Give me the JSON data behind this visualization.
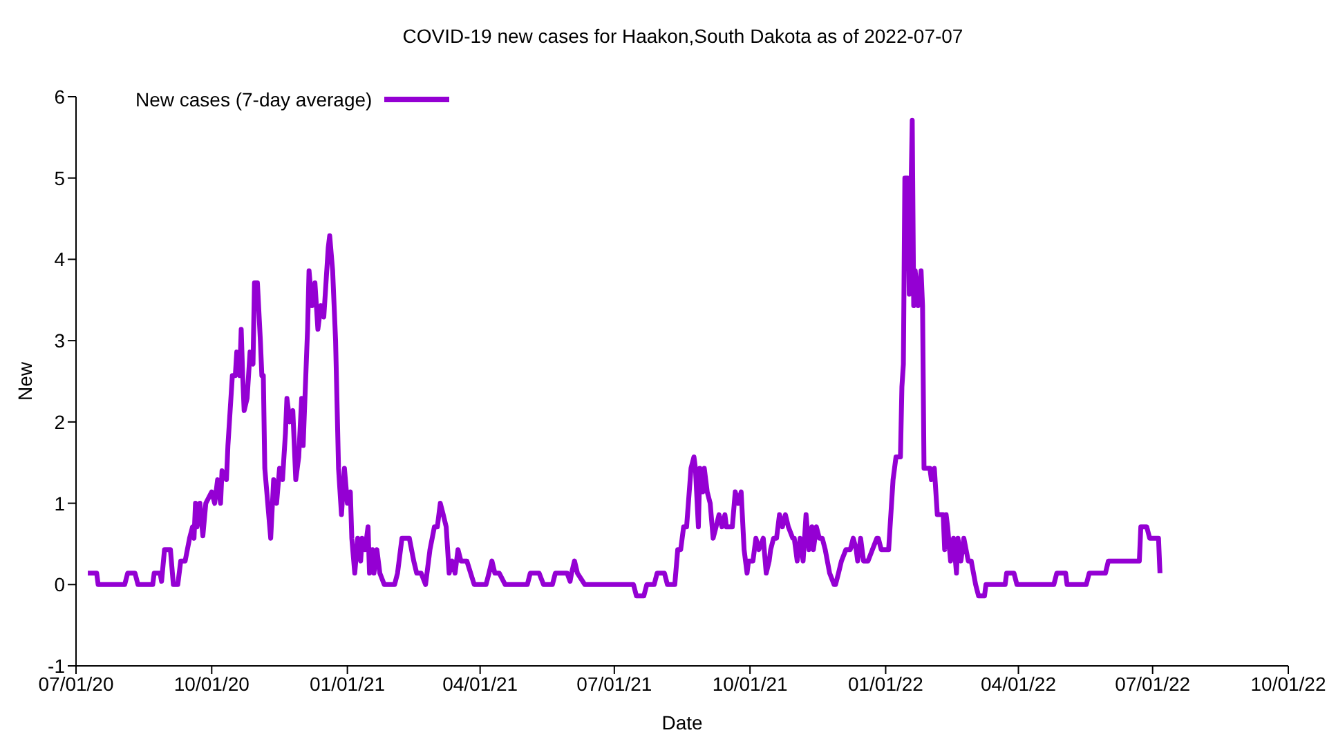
{
  "chart_data": {
    "type": "line",
    "title": "COVID-19 new cases for Haakon,South Dakota as of 2022-07-07",
    "xlabel": "Date",
    "ylabel": "New",
    "x": [
      "2020-07-09",
      "2020-07-15",
      "2020-07-16",
      "2020-08-03",
      "2020-08-05",
      "2020-08-10",
      "2020-08-12",
      "2020-08-22",
      "2020-08-23",
      "2020-08-27",
      "2020-08-28",
      "2020-08-30",
      "2020-09-03",
      "2020-09-05",
      "2020-09-08",
      "2020-09-10",
      "2020-09-13",
      "2020-09-16",
      "2020-09-18",
      "2020-09-19",
      "2020-09-20",
      "2020-09-21",
      "2020-09-23",
      "2020-09-25",
      "2020-09-27",
      "2020-10-01",
      "2020-10-03",
      "2020-10-05",
      "2020-10-07",
      "2020-10-08",
      "2020-10-11",
      "2020-10-12",
      "2020-10-15",
      "2020-10-17",
      "2020-10-18",
      "2020-10-20",
      "2020-10-21",
      "2020-10-22",
      "2020-10-23",
      "2020-10-25",
      "2020-10-27",
      "2020-10-29",
      "2020-10-30",
      "2020-11-01",
      "2020-11-03",
      "2020-11-04",
      "2020-11-05",
      "2020-11-06",
      "2020-11-08",
      "2020-11-10",
      "2020-11-12",
      "2020-11-14",
      "2020-11-16",
      "2020-11-18",
      "2020-11-20",
      "2020-11-21",
      "2020-11-23",
      "2020-11-25",
      "2020-11-27",
      "2020-11-29",
      "2020-12-01",
      "2020-12-02",
      "2020-12-05",
      "2020-12-06",
      "2020-12-08",
      "2020-12-10",
      "2020-12-12",
      "2020-12-14",
      "2020-12-16",
      "2020-12-19",
      "2020-12-20",
      "2020-12-22",
      "2020-12-24",
      "2020-12-26",
      "2020-12-28",
      "2020-12-30",
      "2021-01-01",
      "2021-01-03",
      "2021-01-04",
      "2021-01-06",
      "2021-01-08",
      "2021-01-10",
      "2021-01-11",
      "2021-01-13",
      "2021-01-15",
      "2021-01-16",
      "2021-01-18",
      "2021-01-19",
      "2021-01-21",
      "2021-01-23",
      "2021-01-26",
      "2021-02-02",
      "2021-02-04",
      "2021-02-07",
      "2021-02-12",
      "2021-02-15",
      "2021-02-17",
      "2021-02-20",
      "2021-02-23",
      "2021-02-26",
      "2021-03-01",
      "2021-03-03",
      "2021-03-05",
      "2021-03-07",
      "2021-03-09",
      "2021-03-11",
      "2021-03-13",
      "2021-03-15",
      "2021-03-17",
      "2021-03-19",
      "2021-03-23",
      "2021-03-28",
      "2021-04-05",
      "2021-04-07",
      "2021-04-09",
      "2021-04-11",
      "2021-04-14",
      "2021-04-18",
      "2021-05-03",
      "2021-05-05",
      "2021-05-11",
      "2021-05-14",
      "2021-05-20",
      "2021-05-22",
      "2021-05-30",
      "2021-06-01",
      "2021-06-02",
      "2021-06-04",
      "2021-06-06",
      "2021-06-11",
      "2021-07-14",
      "2021-07-16",
      "2021-07-21",
      "2021-07-23",
      "2021-07-28",
      "2021-07-30",
      "2021-08-04",
      "2021-08-06",
      "2021-08-11",
      "2021-08-13",
      "2021-08-15",
      "2021-08-17",
      "2021-08-19",
      "2021-08-22",
      "2021-08-24",
      "2021-08-25",
      "2021-08-27",
      "2021-08-28",
      "2021-08-30",
      "2021-08-31",
      "2021-09-02",
      "2021-09-04",
      "2021-09-06",
      "2021-09-08",
      "2021-09-10",
      "2021-09-12",
      "2021-09-14",
      "2021-09-15",
      "2021-09-19",
      "2021-09-21",
      "2021-09-23",
      "2021-09-25",
      "2021-09-27",
      "2021-09-29",
      "2021-09-30",
      "2021-10-03",
      "2021-10-05",
      "2021-10-07",
      "2021-10-10",
      "2021-10-12",
      "2021-10-14",
      "2021-10-15",
      "2021-10-17",
      "2021-10-19",
      "2021-10-21",
      "2021-10-23",
      "2021-10-25",
      "2021-10-27",
      "2021-10-30",
      "2021-10-31",
      "2021-11-02",
      "2021-11-04",
      "2021-11-06",
      "2021-11-08",
      "2021-11-10",
      "2021-11-12",
      "2021-11-13",
      "2021-11-15",
      "2021-11-17",
      "2021-11-19",
      "2021-11-21",
      "2021-11-24",
      "2021-11-27",
      "2021-11-28",
      "2021-11-30",
      "2021-12-02",
      "2021-12-05",
      "2021-12-08",
      "2021-12-10",
      "2021-12-12",
      "2021-12-13",
      "2021-12-15",
      "2021-12-17",
      "2021-12-20",
      "2021-12-23",
      "2021-12-26",
      "2021-12-27",
      "2021-12-29",
      "2022-01-03",
      "2022-01-06",
      "2022-01-08",
      "2022-01-11",
      "2022-01-12",
      "2022-01-13",
      "2022-01-14",
      "2022-01-16",
      "2022-01-17",
      "2022-01-19",
      "2022-01-20",
      "2022-01-21",
      "2022-01-23",
      "2022-01-25",
      "2022-01-26",
      "2022-01-27",
      "2022-01-31",
      "2022-02-01",
      "2022-02-03",
      "2022-02-05",
      "2022-02-09",
      "2022-02-10",
      "2022-02-11",
      "2022-02-12",
      "2022-02-14",
      "2022-02-16",
      "2022-02-18",
      "2022-02-19",
      "2022-02-21",
      "2022-02-23",
      "2022-02-26",
      "2022-02-28",
      "2022-03-03",
      "2022-03-05",
      "2022-03-09",
      "2022-03-10",
      "2022-03-23",
      "2022-03-24",
      "2022-03-29",
      "2022-03-31",
      "2022-04-25",
      "2022-04-27",
      "2022-05-03",
      "2022-05-04",
      "2022-05-17",
      "2022-05-19",
      "2022-05-30",
      "2022-06-01",
      "2022-06-22",
      "2022-06-23",
      "2022-06-27",
      "2022-06-29",
      "2022-07-05",
      "2022-07-06"
    ],
    "series": [
      {
        "name": "New cases (7-day average)",
        "color": "#9400d3",
        "values": [
          0.14,
          0.14,
          0,
          0,
          0.14,
          0.14,
          0,
          0,
          0.14,
          0.14,
          0.04,
          0.43,
          0.43,
          0,
          0,
          0.29,
          0.29,
          0.57,
          0.71,
          0.57,
          1.0,
          0.71,
          1.0,
          0.6,
          1.0,
          1.14,
          1.0,
          1.29,
          1.0,
          1.4,
          1.29,
          1.71,
          2.57,
          2.57,
          2.86,
          2.57,
          3.14,
          2.57,
          2.14,
          2.29,
          2.86,
          2.71,
          3.71,
          3.71,
          3.0,
          2.57,
          2.57,
          1.43,
          1.0,
          0.57,
          1.29,
          1.0,
          1.43,
          1.29,
          1.86,
          2.29,
          2.0,
          2.14,
          1.29,
          1.57,
          2.29,
          1.71,
          3.14,
          3.86,
          3.43,
          3.71,
          3.14,
          3.43,
          3.29,
          4.14,
          4.29,
          3.86,
          3.0,
          1.43,
          0.86,
          1.43,
          1.0,
          1.14,
          0.57,
          0.14,
          0.57,
          0.29,
          0.57,
          0.43,
          0.71,
          0.14,
          0.43,
          0.14,
          0.43,
          0.14,
          0,
          0,
          0.14,
          0.57,
          0.57,
          0.29,
          0.14,
          0.14,
          0,
          0.43,
          0.71,
          0.71,
          1.0,
          0.86,
          0.71,
          0.14,
          0.29,
          0.14,
          0.43,
          0.29,
          0.29,
          0,
          0,
          0.14,
          0.29,
          0.14,
          0.14,
          0,
          0,
          0.14,
          0.14,
          0,
          0,
          0.14,
          0.14,
          0.04,
          0.14,
          0.29,
          0.14,
          0,
          0,
          -0.14,
          -0.14,
          0,
          0,
          0.14,
          0.14,
          0,
          0,
          0.43,
          0.43,
          0.71,
          0.71,
          1.43,
          1.57,
          1.43,
          0.71,
          1.43,
          1.14,
          1.43,
          1.14,
          1.0,
          0.57,
          0.71,
          0.86,
          0.71,
          0.86,
          0.71,
          0.71,
          1.14,
          1.0,
          1.14,
          0.43,
          0.14,
          0.29,
          0.29,
          0.57,
          0.43,
          0.57,
          0.14,
          0.29,
          0.43,
          0.57,
          0.57,
          0.86,
          0.71,
          0.86,
          0.71,
          0.57,
          0.57,
          0.29,
          0.57,
          0.29,
          0.86,
          0.43,
          0.71,
          0.43,
          0.71,
          0.57,
          0.57,
          0.43,
          0.14,
          0,
          0,
          0.14,
          0.29,
          0.43,
          0.43,
          0.57,
          0.43,
          0.29,
          0.57,
          0.29,
          0.29,
          0.43,
          0.57,
          0.57,
          0.43,
          0.43,
          1.29,
          1.57,
          1.57,
          2.43,
          2.71,
          5.0,
          5.0,
          3.57,
          5.71,
          3.43,
          3.86,
          3.43,
          3.86,
          3.43,
          1.43,
          1.43,
          1.29,
          1.43,
          0.86,
          0.86,
          0.43,
          0.86,
          0.71,
          0.29,
          0.57,
          0.14,
          0.57,
          0.29,
          0.57,
          0.29,
          0.29,
          0,
          -0.14,
          -0.14,
          0,
          0,
          0.14,
          0.14,
          0,
          0,
          0.14,
          0.14,
          0,
          0,
          0.14,
          0.14,
          0.29,
          0.29,
          0.71,
          0.71,
          0.57,
          0.57,
          0.14
        ]
      }
    ],
    "xlim": [
      "2020-07-01",
      "2022-10-01"
    ],
    "xticks": [
      {
        "value": "2020-07-01",
        "label": "07/01/20"
      },
      {
        "value": "2020-10-01",
        "label": "10/01/20"
      },
      {
        "value": "2021-01-01",
        "label": "01/01/21"
      },
      {
        "value": "2021-04-01",
        "label": "04/01/21"
      },
      {
        "value": "2021-07-01",
        "label": "07/01/21"
      },
      {
        "value": "2021-10-01",
        "label": "10/01/21"
      },
      {
        "value": "2022-01-01",
        "label": "01/01/22"
      },
      {
        "value": "2022-04-01",
        "label": "04/01/22"
      },
      {
        "value": "2022-07-01",
        "label": "07/01/22"
      },
      {
        "value": "2022-10-01",
        "label": "10/01/22"
      }
    ],
    "ylim": [
      -1,
      6
    ],
    "yticks": [
      -1,
      0,
      1,
      2,
      3,
      4,
      5,
      6
    ],
    "grid": false,
    "legend": "top left",
    "marker": "none",
    "line_style": "solid"
  }
}
